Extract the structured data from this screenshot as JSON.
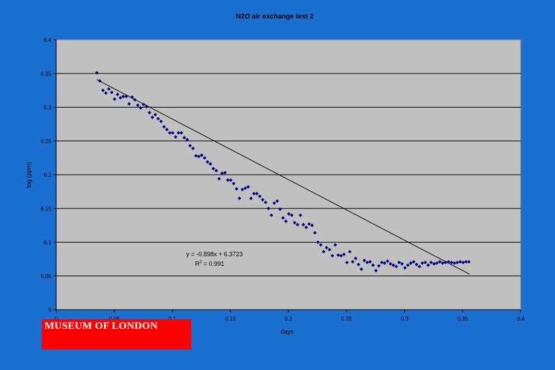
{
  "chart_data": {
    "type": "scatter",
    "title": "N2O air exchange test 2",
    "xlabel": "days",
    "ylabel": "log (ppm)",
    "xlim": [
      0,
      0.4
    ],
    "ylim": [
      6,
      6.4
    ],
    "x_ticks": [
      "0",
      "0.05",
      "0.1",
      "0.15",
      "0.2",
      "0.25",
      "0.3",
      "0.35",
      "0.4"
    ],
    "y_ticks": [
      "6",
      "6.05",
      "6.1",
      "6.15",
      "6.2",
      "6.25",
      "6.3",
      "6.35",
      "6.4"
    ],
    "grid": "horizontal",
    "colors": {
      "points": "#000080",
      "plot_area": "#c0c0c0",
      "background": "#1a6fd0",
      "trendline": "#000000"
    },
    "series": [
      {
        "x": [
          0.035,
          0.0375,
          0.0403,
          0.0428,
          0.0453,
          0.0478,
          0.0503,
          0.0528,
          0.0553,
          0.0578,
          0.0603,
          0.0628,
          0.0653,
          0.0678,
          0.0703,
          0.0728,
          0.0753,
          0.0778,
          0.0803,
          0.0828,
          0.0853,
          0.0878,
          0.0903,
          0.0928,
          0.0953,
          0.0978,
          0.1003,
          0.1028,
          0.1053,
          0.1078,
          0.1103,
          0.1128,
          0.1153,
          0.1178,
          0.1203,
          0.1228,
          0.1253,
          0.1278,
          0.1303,
          0.1328,
          0.1353,
          0.1378,
          0.1403,
          0.1428,
          0.1453,
          0.1478,
          0.1503,
          0.1528,
          0.1553,
          0.1578,
          0.1603,
          0.1628,
          0.1653,
          0.1678,
          0.1703,
          0.1728,
          0.1753,
          0.1778,
          0.1803,
          0.1828,
          0.1853,
          0.1878,
          0.1903,
          0.1928,
          0.1953,
          0.1978,
          0.2003,
          0.2028,
          0.2053,
          0.2078,
          0.2103,
          0.2128,
          0.2153,
          0.2178,
          0.2203,
          0.2228,
          0.2253,
          0.2278,
          0.2303,
          0.2328,
          0.2353,
          0.2378,
          0.2403,
          0.2428,
          0.2453,
          0.2478,
          0.2503,
          0.2528,
          0.2553,
          0.2578,
          0.2603,
          0.2628,
          0.2653,
          0.2678,
          0.2703,
          0.2728,
          0.2753,
          0.2778,
          0.2803,
          0.2828,
          0.2853,
          0.2878,
          0.2903,
          0.2928,
          0.2953,
          0.2978,
          0.3003,
          0.3028,
          0.3053,
          0.3078,
          0.3103,
          0.3128,
          0.3153,
          0.3178,
          0.3203,
          0.3228,
          0.3253,
          0.3278,
          0.3303,
          0.3328,
          0.3353,
          0.3378,
          0.3403,
          0.3428,
          0.3453,
          0.3478,
          0.3503,
          0.3528,
          0.3553
        ],
        "y": [
          6.351,
          6.339,
          6.325,
          6.321,
          6.327,
          6.322,
          6.312,
          6.319,
          6.314,
          6.316,
          6.316,
          6.305,
          6.315,
          6.311,
          6.303,
          6.299,
          6.304,
          6.301,
          6.292,
          6.285,
          6.289,
          6.283,
          6.279,
          6.271,
          6.267,
          6.262,
          6.262,
          6.256,
          6.262,
          6.262,
          6.255,
          6.252,
          6.243,
          6.239,
          6.228,
          6.227,
          6.229,
          6.225,
          6.219,
          6.216,
          6.209,
          6.206,
          6.194,
          6.202,
          6.203,
          6.192,
          6.192,
          6.187,
          6.179,
          6.165,
          6.178,
          6.18,
          6.182,
          6.165,
          6.172,
          6.172,
          6.168,
          6.163,
          6.159,
          6.15,
          6.14,
          6.158,
          6.161,
          6.149,
          6.136,
          6.131,
          6.142,
          6.14,
          6.129,
          6.126,
          6.14,
          6.126,
          6.122,
          6.127,
          6.125,
          6.114,
          6.1,
          6.096,
          6.086,
          6.092,
          6.089,
          6.08,
          6.096,
          6.081,
          6.08,
          6.082,
          6.07,
          6.086,
          6.071,
          6.076,
          6.067,
          6.06,
          6.073,
          6.07,
          6.071,
          6.066,
          6.058,
          6.065,
          6.07,
          6.069,
          6.072,
          6.068,
          6.066,
          6.064,
          6.07,
          6.068,
          6.062,
          6.066,
          6.069,
          6.071,
          6.067,
          6.064,
          6.069,
          6.07,
          6.066,
          6.07,
          6.068,
          6.069,
          6.071,
          6.069,
          6.07,
          6.071,
          6.07,
          6.069,
          6.07,
          6.071,
          6.07,
          6.071,
          6.071
        ]
      }
    ],
    "trendline": {
      "slope": -0.898,
      "intercept": 6.3723,
      "x_range": [
        0.035,
        0.356
      ],
      "equation": "y = -0.898x + 6.3723",
      "r2_prefix": "R",
      "r2_sup": "2",
      "r2_value": " = 0.991"
    }
  },
  "logo": {
    "text": "MUSEUM OF LONDON",
    "color": "#ff0000"
  }
}
